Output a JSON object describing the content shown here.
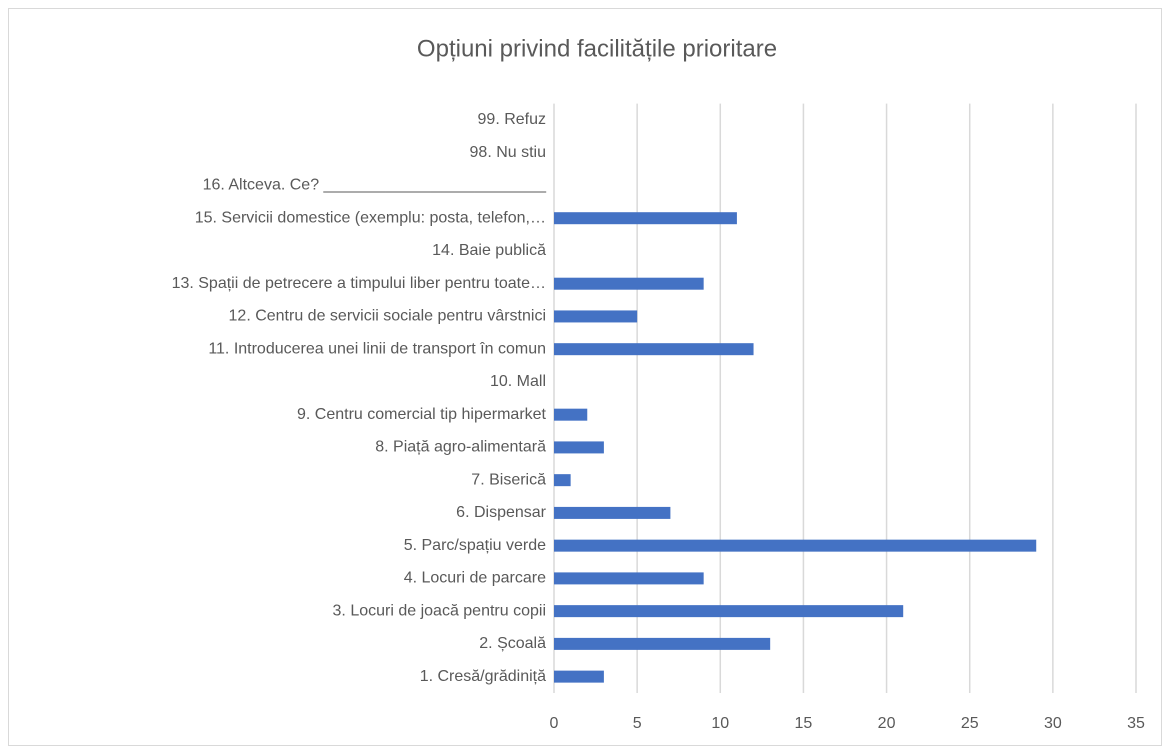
{
  "chart_data": {
    "type": "barh",
    "title": "Opțiuni privind facilitățile prioritare",
    "categories": [
      "1. Cresă/grădiniță",
      "2. Școală",
      "3. Locuri de joacă pentru copii",
      "4. Locuri de parcare",
      "5. Parc/spațiu verde",
      "6. Dispensar",
      "7. Biserică",
      "8. Piață agro-alimentară",
      "9. Centru comercial tip hipermarket",
      "10. Mall",
      "11. Introducerea unei linii de transport în comun",
      "12. Centru de servicii sociale pentru vârstnici",
      "13. Spații de petrecere a timpului liber pentru toate…",
      "14. Baie publică",
      "15. Servicii domestice (exemplu: posta, telefon,…",
      "16. Altceva. Ce? _________________________",
      "98. Nu stiu",
      "99. Refuz"
    ],
    "values": [
      3,
      13,
      21,
      9,
      29,
      7,
      1,
      3,
      2,
      0,
      12,
      5,
      9,
      0,
      11,
      0,
      0,
      0
    ],
    "color": "#4472c4",
    "xlim": [
      0,
      35
    ],
    "xticks": [
      0,
      5,
      10,
      15,
      20,
      25,
      30,
      35
    ],
    "grid": true
  }
}
